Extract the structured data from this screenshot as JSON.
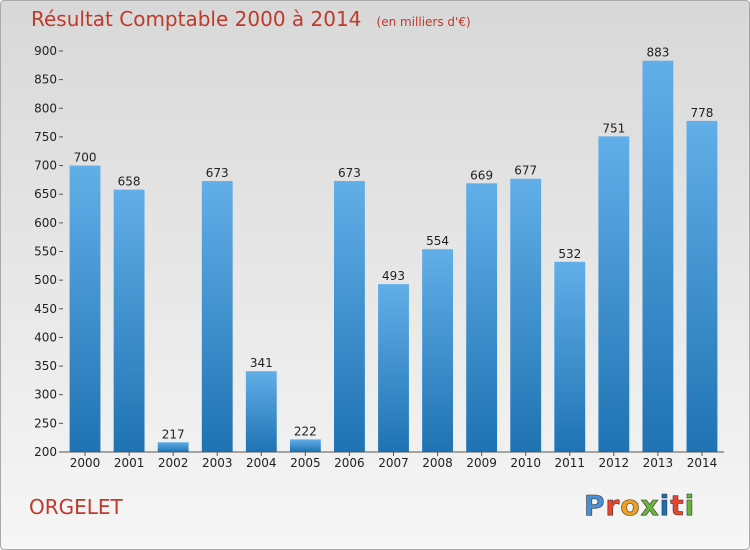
{
  "header": {
    "title": "Résultat Comptable 2000 à 2014",
    "subtitle": "(en milliers d'€)"
  },
  "footer": {
    "place": "ORGELET",
    "logo_text": "Proxiti",
    "logo_colors": [
      "#4a8fd6",
      "#e8462e",
      "#f0a020",
      "#6bb33e",
      "#1f6fb7",
      "#e8462e",
      "#6bb33e"
    ]
  },
  "colors": {
    "bar_top": "#62aee8",
    "bar_bottom": "#1f73b3",
    "axis_text": "#222222",
    "title": "#c0392b"
  },
  "chart_data": {
    "type": "bar",
    "title": "Résultat Comptable 2000 à 2014",
    "subtitle": "(en milliers d'€)",
    "categories": [
      "2000",
      "2001",
      "2002",
      "2003",
      "2004",
      "2005",
      "2006",
      "2007",
      "2008",
      "2009",
      "2010",
      "2011",
      "2012",
      "2013",
      "2014"
    ],
    "values": [
      700,
      658,
      217,
      673,
      341,
      222,
      673,
      493,
      554,
      669,
      677,
      532,
      751,
      883,
      778
    ],
    "ylim": [
      200,
      900
    ],
    "yticks": [
      200,
      250,
      300,
      350,
      400,
      450,
      500,
      550,
      600,
      650,
      700,
      750,
      800,
      850,
      900
    ],
    "grid": false
  }
}
